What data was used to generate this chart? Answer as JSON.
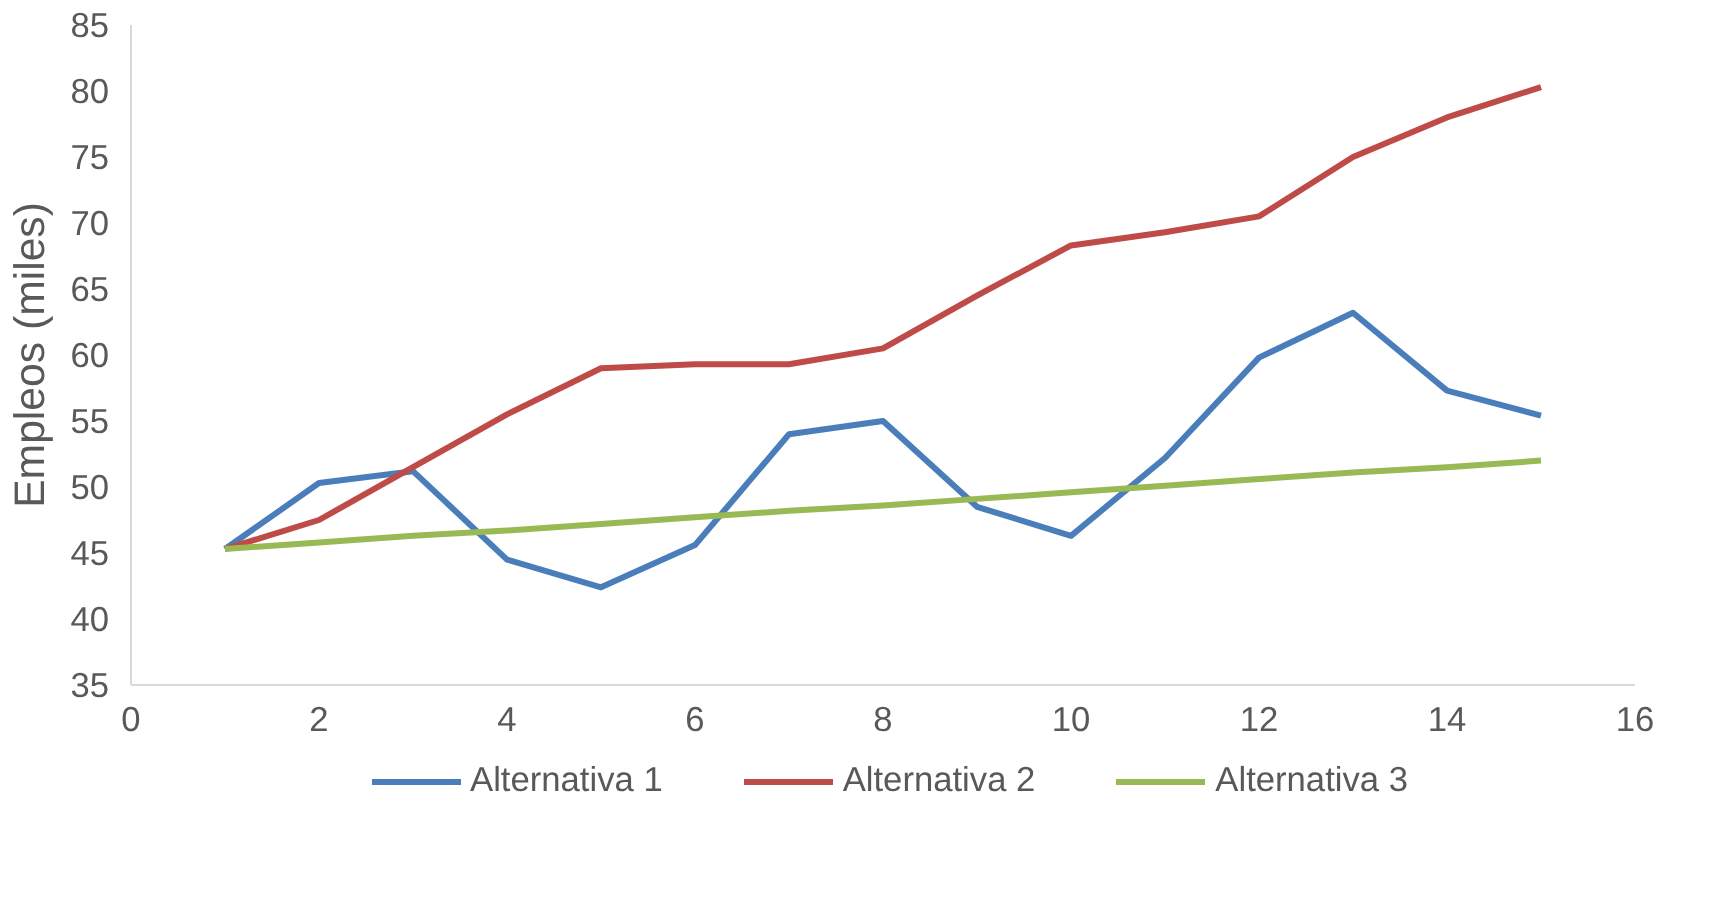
{
  "chart_data": {
    "type": "line",
    "ylabel": "Empleos (miles)",
    "x": [
      1,
      2,
      3,
      4,
      5,
      6,
      7,
      8,
      9,
      10,
      11,
      12,
      13,
      14,
      15
    ],
    "series": [
      {
        "name": "Alternativa 1",
        "color": "#4a7ebb",
        "values": [
          45.3,
          50.3,
          51.2,
          44.5,
          42.4,
          45.6,
          54,
          55,
          48.5,
          46.3,
          52.2,
          59.8,
          63.2,
          57.3,
          55.4
        ]
      },
      {
        "name": "Alternativa 2",
        "color": "#be4b48",
        "values": [
          45.3,
          47.5,
          51.5,
          55.5,
          59,
          59.3,
          59.3,
          60.5,
          64.5,
          68.3,
          69.3,
          70.5,
          75,
          78,
          80.3
        ]
      },
      {
        "name": "Alternativa 3",
        "color": "#98b954",
        "values": [
          45.3,
          45.8,
          46.3,
          46.7,
          47.2,
          47.7,
          48.2,
          48.6,
          49.1,
          49.6,
          50.1,
          50.6,
          51.1,
          51.5,
          52.0
        ]
      }
    ],
    "xlim": [
      0,
      16
    ],
    "xticks": [
      0,
      2,
      4,
      6,
      8,
      10,
      12,
      14,
      16
    ],
    "ylim": [
      35,
      85
    ],
    "yticks": [
      35,
      40,
      45,
      50,
      55,
      60,
      65,
      70,
      75,
      80,
      85
    ],
    "grid": false,
    "legend": "bottom",
    "marker": "none",
    "line_style": "solid"
  }
}
